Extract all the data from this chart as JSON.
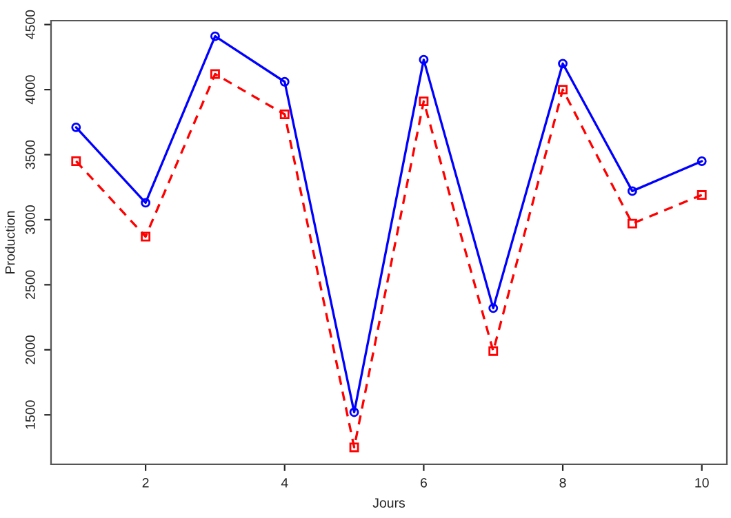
{
  "chart_data": {
    "type": "line",
    "xlabel": "Jours",
    "ylabel": "Production",
    "x": [
      1,
      2,
      3,
      4,
      5,
      6,
      7,
      8,
      9,
      10
    ],
    "series": [
      {
        "color": "#0000ff",
        "marker": "circle",
        "line_style": "solid",
        "values": [
          3710,
          3130,
          4410,
          4060,
          1520,
          4230,
          2320,
          4200,
          3220,
          3450
        ]
      },
      {
        "color": "#ff0000",
        "marker": "square",
        "line_style": "dashed",
        "values": [
          3450,
          2870,
          4120,
          3810,
          1250,
          3910,
          1990,
          4000,
          2970,
          3190
        ]
      }
    ],
    "xlim": [
      0.64,
      10.36
    ],
    "xticks": [
      2,
      4,
      6,
      8,
      10
    ],
    "ylim": [
      1120,
      4530
    ],
    "yticks": [
      1500,
      2000,
      2500,
      3000,
      3500,
      4000,
      4500
    ],
    "grid": false
  }
}
